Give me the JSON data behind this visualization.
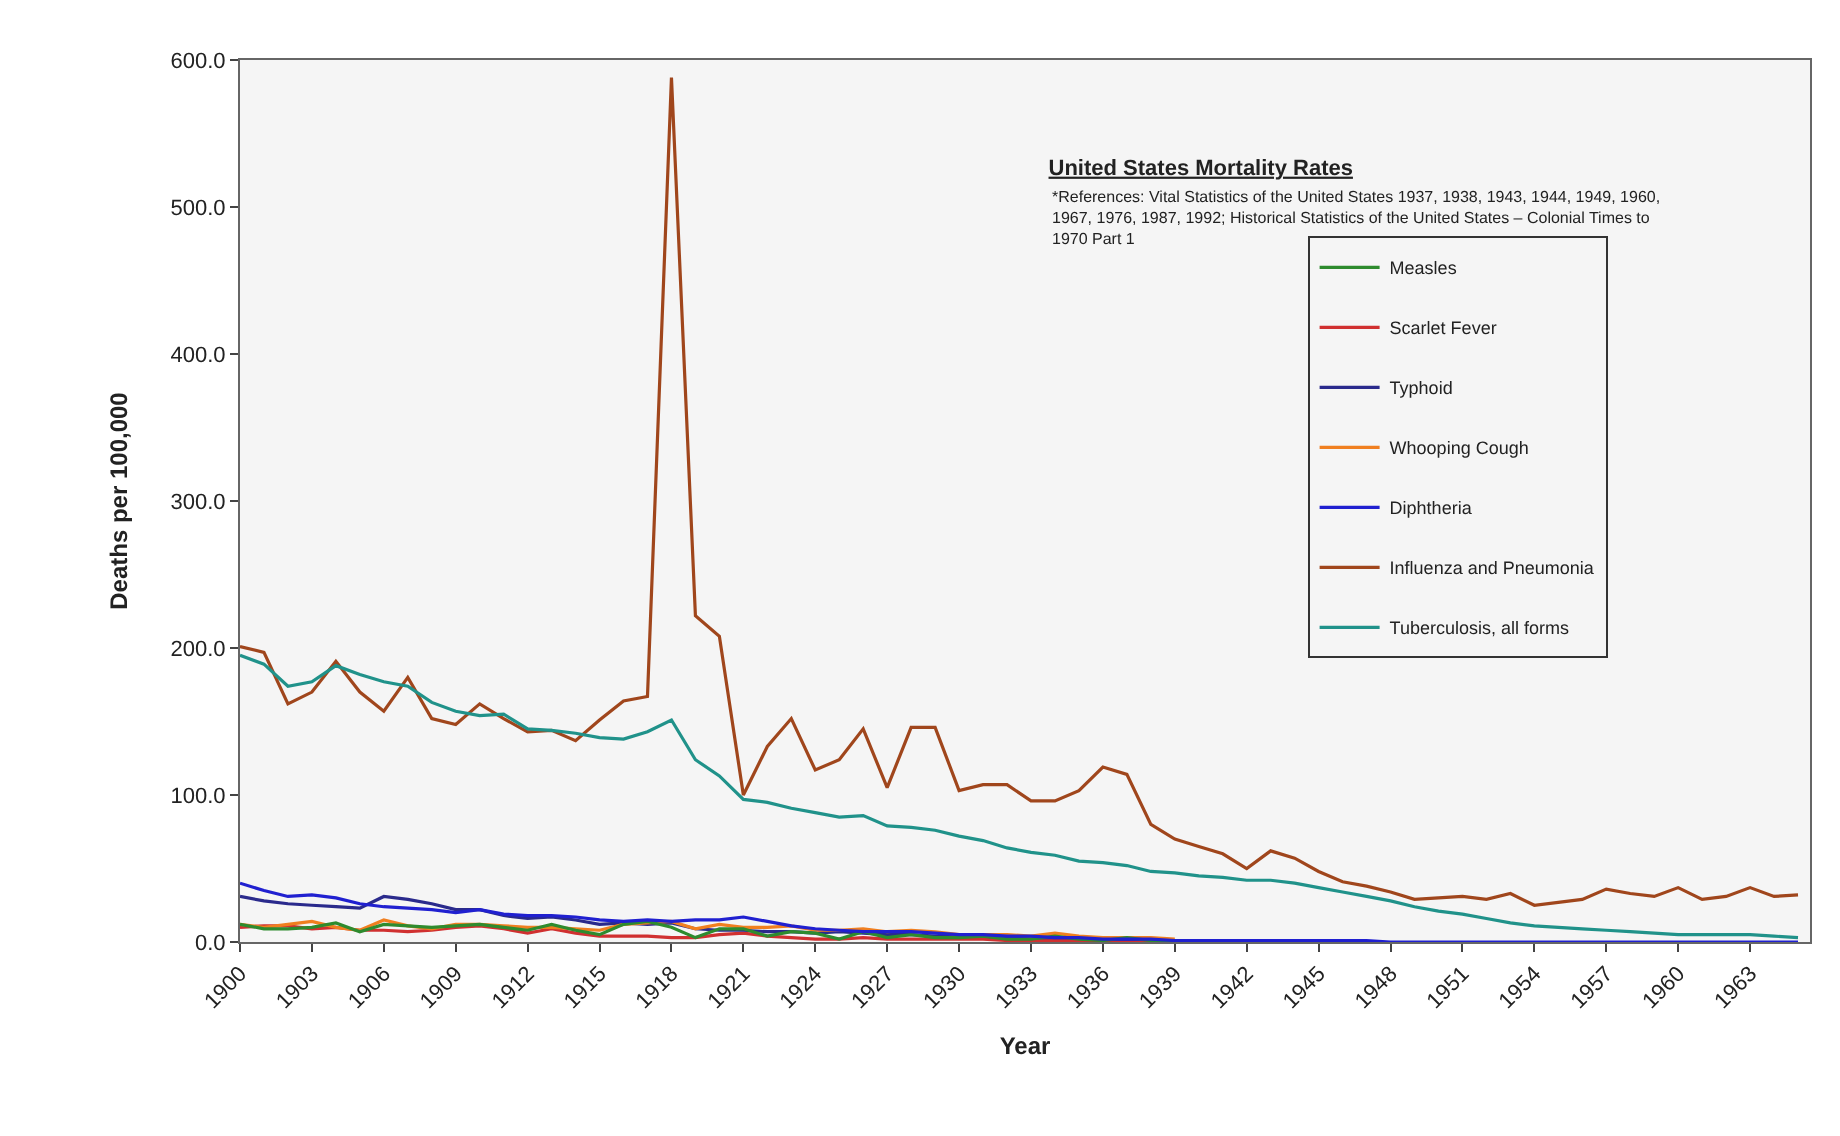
{
  "chart_data": {
    "type": "line",
    "title": "United States Mortality Rates",
    "annotations": [
      "*References: Vital Statistics of the United States 1937, 1938, 1943, 1944, 1949, 1960, 1967, 1976, 1987, 1992; Historical Statistics of the United States – Colonial Times to 1970 Part 1"
    ],
    "xlabel": "Year",
    "ylabel": "Deaths per 100,000",
    "x": [
      1900,
      1901,
      1902,
      1903,
      1904,
      1905,
      1906,
      1907,
      1908,
      1909,
      1910,
      1911,
      1912,
      1913,
      1914,
      1915,
      1916,
      1917,
      1918,
      1919,
      1920,
      1921,
      1922,
      1923,
      1924,
      1925,
      1926,
      1927,
      1928,
      1929,
      1930,
      1931,
      1932,
      1933,
      1934,
      1935,
      1936,
      1937,
      1938,
      1939,
      1940,
      1941,
      1942,
      1943,
      1944,
      1945,
      1946,
      1947,
      1948,
      1949,
      1950,
      1951,
      1952,
      1953,
      1954,
      1955,
      1956,
      1957,
      1958,
      1959,
      1960,
      1961,
      1962,
      1963,
      1964,
      1965
    ],
    "series": [
      {
        "name": "Measles",
        "color": "#2e8b2e",
        "values": [
          12,
          9,
          9,
          10,
          13,
          7,
          12,
          11,
          10,
          11,
          12,
          10,
          8,
          12,
          8,
          5,
          12,
          14,
          10,
          3,
          9,
          9,
          4,
          7,
          6,
          2,
          7,
          3,
          5,
          3,
          3,
          4,
          2,
          2,
          4,
          2,
          1,
          3,
          1,
          1,
          null,
          null,
          null,
          null,
          null,
          null,
          null,
          null,
          null,
          null,
          null,
          null,
          null,
          null,
          null,
          null,
          null,
          null,
          null,
          null,
          null,
          null,
          null,
          null,
          null,
          null
        ]
      },
      {
        "name": "Scarlet Fever",
        "color": "#d03030",
        "values": [
          10,
          11,
          11,
          9,
          10,
          8,
          8,
          7,
          8,
          10,
          11,
          9,
          6,
          9,
          6,
          4,
          4,
          4,
          3,
          3,
          5,
          6,
          4,
          3,
          2,
          2,
          3,
          2,
          2,
          2,
          2,
          2,
          1,
          1,
          1,
          1,
          1,
          1,
          1,
          0,
          null,
          null,
          null,
          null,
          null,
          null,
          null,
          null,
          null,
          null,
          null,
          null,
          null,
          null,
          null,
          null,
          null,
          null,
          null,
          null,
          null,
          null,
          null,
          null,
          null,
          null
        ]
      },
      {
        "name": "Typhoid",
        "color": "#2a2a8c",
        "values": [
          31,
          28,
          26,
          25,
          24,
          23,
          31,
          29,
          26,
          22,
          22,
          18,
          16,
          17,
          15,
          12,
          13,
          12,
          13,
          9,
          8,
          8,
          7,
          7,
          6,
          7,
          6,
          5,
          5,
          4,
          4,
          4,
          3,
          3,
          3,
          3,
          2,
          2,
          2,
          1,
          null,
          null,
          null,
          null,
          null,
          null,
          null,
          null,
          null,
          null,
          null,
          null,
          null,
          null,
          null,
          null,
          null,
          null,
          null,
          null,
          null,
          null,
          null,
          null,
          null,
          null
        ]
      },
      {
        "name": "Whooping Cough",
        "color": "#f07f20",
        "values": [
          12,
          10,
          12,
          14,
          10,
          8,
          15,
          11,
          9,
          12,
          12,
          11,
          10,
          10,
          9,
          8,
          12,
          13,
          14,
          9,
          12,
          10,
          10,
          11,
          8,
          8,
          9,
          7,
          8,
          7,
          5,
          5,
          5,
          4,
          6,
          4,
          3,
          3,
          3,
          2,
          null,
          null,
          null,
          null,
          null,
          null,
          null,
          null,
          null,
          null,
          null,
          null,
          null,
          null,
          null,
          null,
          null,
          null,
          null,
          null,
          null,
          null,
          null,
          null,
          null,
          null
        ]
      },
      {
        "name": "Diphtheria",
        "color": "#2020d0",
        "values": [
          40,
          35,
          31,
          32,
          30,
          26,
          24,
          23,
          22,
          20,
          22,
          19,
          18,
          18,
          17,
          15,
          14,
          15,
          14,
          15,
          15,
          17,
          14,
          11,
          9,
          8,
          7,
          7,
          7,
          6,
          5,
          5,
          4,
          4,
          3,
          3,
          2,
          2,
          2,
          1,
          1,
          1,
          1,
          1,
          1,
          1,
          1,
          1,
          0,
          0,
          0,
          0,
          0,
          0,
          0,
          0,
          0,
          0,
          0,
          0,
          0,
          0,
          0,
          0,
          0,
          0
        ]
      },
      {
        "name": "Influenza and Pneumonia",
        "color": "#a0461c",
        "values": [
          201,
          197,
          162,
          170,
          191,
          170,
          157,
          180,
          152,
          148,
          162,
          152,
          143,
          144,
          137,
          151,
          164,
          167,
          588,
          222,
          208,
          100,
          133,
          152,
          117,
          124,
          145,
          105,
          146,
          146,
          103,
          107,
          107,
          96,
          96,
          103,
          119,
          114,
          80,
          70,
          65,
          60,
          50,
          62,
          57,
          48,
          41,
          38,
          34,
          29,
          30,
          31,
          29,
          33,
          25,
          27,
          29,
          36,
          33,
          31,
          37,
          29,
          31,
          37,
          31,
          32
        ]
      },
      {
        "name": "Tuberculosis, all forms",
        "color": "#20928a",
        "values": [
          195,
          189,
          174,
          177,
          188,
          182,
          177,
          174,
          163,
          157,
          154,
          155,
          145,
          144,
          142,
          139,
          138,
          143,
          151,
          124,
          113,
          97,
          95,
          91,
          88,
          85,
          86,
          79,
          78,
          76,
          72,
          69,
          64,
          61,
          59,
          55,
          54,
          52,
          48,
          47,
          45,
          44,
          42,
          42,
          40,
          37,
          34,
          31,
          28,
          24,
          21,
          19,
          16,
          13,
          11,
          10,
          9,
          8,
          7,
          6,
          5,
          5,
          5,
          5,
          4,
          3
        ]
      }
    ],
    "xlim": [
      1900,
      1965.5
    ],
    "xticks": [
      1900,
      1903,
      1906,
      1909,
      1912,
      1915,
      1918,
      1921,
      1924,
      1927,
      1930,
      1933,
      1936,
      1939,
      1942,
      1945,
      1948,
      1951,
      1954,
      1957,
      1960,
      1963
    ],
    "ylim": [
      0,
      600
    ],
    "yticks": [
      {
        "value": 0,
        "label": "0.0"
      },
      {
        "value": 100,
        "label": "100.0"
      },
      {
        "value": 200,
        "label": "200.0"
      },
      {
        "value": 300,
        "label": "300.0"
      },
      {
        "value": 400,
        "label": "400.0"
      },
      {
        "value": 500,
        "label": "500.0"
      },
      {
        "value": 600,
        "label": "600.0"
      }
    ],
    "legend": "top right",
    "grid": false,
    "marker": "none",
    "line_style": "solid"
  }
}
